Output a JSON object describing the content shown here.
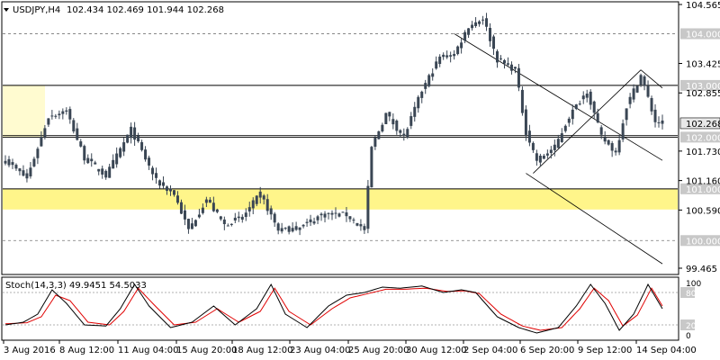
{
  "main_chart": {
    "symbol_label": "USDJPY,H4",
    "ohlc_label": "102.434 102.469 101.944 102.268",
    "current_price_label": "102.268"
  },
  "stoch": {
    "label": "Stoch(14,3,3) 49.9451 54.5033",
    "axis_labels": [
      "100",
      "80",
      "20",
      "0"
    ]
  },
  "colors": {
    "candle": "#3a4654",
    "support_zone": "#fff58a",
    "resist_zone": "#fffbd0",
    "level_line": "#000000",
    "stoch_main": "#000000",
    "stoch_signal": "#e00000",
    "level_label_bg": "#c8c8c8"
  },
  "chart_data": {
    "type": "candlestick",
    "price_axis_ticks": [
      "104.565",
      "103.425",
      "102.855",
      "101.730",
      "101.160",
      "100.590",
      "99.465"
    ],
    "ylim": [
      99.465,
      104.565
    ],
    "time_axis_labels": [
      "3 Aug 2016",
      "8 Aug 12:00",
      "11 Aug 04:00",
      "15 Aug 20:00",
      "18 Aug 12:00",
      "23 Aug 04:00",
      "25 Aug 20:00",
      "30 Aug 12:00",
      "2 Sep 04:00",
      "6 Sep 20:00",
      "9 Sep 12:00",
      "14 Sep 04:00"
    ],
    "horizontal_levels": [
      {
        "label": "104.000",
        "value": 104.0,
        "style": "dashed"
      },
      {
        "label": "103.000",
        "value": 103.0,
        "style": "solid"
      },
      {
        "label": "102.000",
        "value": 102.0,
        "style": "solid"
      },
      {
        "label": "101.000",
        "value": 101.0,
        "style": "solid"
      },
      {
        "label": "100.000",
        "value": 100.0,
        "style": "dashed"
      }
    ],
    "zones": [
      {
        "type": "support",
        "from": 100.6,
        "to": 101.0
      },
      {
        "type": "resistance",
        "from": 102.0,
        "to": 103.0
      }
    ],
    "anchors": [
      {
        "x": 0,
        "close": 101.55
      },
      {
        "x": 6,
        "close": 101.2
      },
      {
        "x": 12,
        "close": 102.4
      },
      {
        "x": 17,
        "close": 102.5
      },
      {
        "x": 22,
        "close": 101.6
      },
      {
        "x": 28,
        "close": 101.25
      },
      {
        "x": 35,
        "close": 102.15
      },
      {
        "x": 42,
        "close": 101.15
      },
      {
        "x": 47,
        "close": 100.9
      },
      {
        "x": 51,
        "close": 100.2
      },
      {
        "x": 56,
        "close": 100.8
      },
      {
        "x": 61,
        "close": 100.3
      },
      {
        "x": 66,
        "close": 100.45
      },
      {
        "x": 71,
        "close": 100.9
      },
      {
        "x": 76,
        "close": 100.2
      },
      {
        "x": 82,
        "close": 100.25
      },
      {
        "x": 88,
        "close": 100.5
      },
      {
        "x": 95,
        "close": 100.5
      },
      {
        "x": 100,
        "close": 100.2
      },
      {
        "x": 102,
        "close": 101.8
      },
      {
        "x": 106,
        "close": 102.45
      },
      {
        "x": 111,
        "close": 102.0
      },
      {
        "x": 116,
        "close": 102.9
      },
      {
        "x": 121,
        "close": 103.55
      },
      {
        "x": 125,
        "close": 103.6
      },
      {
        "x": 129,
        "close": 104.15
      },
      {
        "x": 133,
        "close": 104.3
      },
      {
        "x": 137,
        "close": 103.5
      },
      {
        "x": 142,
        "close": 103.3
      },
      {
        "x": 145,
        "close": 102.1
      },
      {
        "x": 148,
        "close": 101.55
      },
      {
        "x": 153,
        "close": 101.8
      },
      {
        "x": 157,
        "close": 102.4
      },
      {
        "x": 162,
        "close": 102.9
      },
      {
        "x": 166,
        "close": 102.0
      },
      {
        "x": 170,
        "close": 101.7
      },
      {
        "x": 173,
        "close": 102.6
      },
      {
        "x": 177,
        "close": 103.2
      },
      {
        "x": 181,
        "close": 102.3
      },
      {
        "x": 183,
        "close": 102.268
      }
    ],
    "stoch_main": [
      {
        "x": 0,
        "y": 20
      },
      {
        "x": 5,
        "y": 25
      },
      {
        "x": 9,
        "y": 40
      },
      {
        "x": 13,
        "y": 85
      },
      {
        "x": 17,
        "y": 60
      },
      {
        "x": 22,
        "y": 20
      },
      {
        "x": 28,
        "y": 18
      },
      {
        "x": 32,
        "y": 50
      },
      {
        "x": 36,
        "y": 95
      },
      {
        "x": 40,
        "y": 55
      },
      {
        "x": 46,
        "y": 15
      },
      {
        "x": 52,
        "y": 25
      },
      {
        "x": 58,
        "y": 55
      },
      {
        "x": 64,
        "y": 20
      },
      {
        "x": 70,
        "y": 50
      },
      {
        "x": 74,
        "y": 95
      },
      {
        "x": 78,
        "y": 40
      },
      {
        "x": 84,
        "y": 15
      },
      {
        "x": 90,
        "y": 55
      },
      {
        "x": 95,
        "y": 75
      },
      {
        "x": 100,
        "y": 80
      },
      {
        "x": 105,
        "y": 90
      },
      {
        "x": 110,
        "y": 88
      },
      {
        "x": 116,
        "y": 92
      },
      {
        "x": 122,
        "y": 80
      },
      {
        "x": 127,
        "y": 85
      },
      {
        "x": 131,
        "y": 80
      },
      {
        "x": 137,
        "y": 35
      },
      {
        "x": 143,
        "y": 15
      },
      {
        "x": 148,
        "y": 5
      },
      {
        "x": 154,
        "y": 15
      },
      {
        "x": 159,
        "y": 55
      },
      {
        "x": 163,
        "y": 95
      },
      {
        "x": 167,
        "y": 60
      },
      {
        "x": 171,
        "y": 10
      },
      {
        "x": 175,
        "y": 40
      },
      {
        "x": 179,
        "y": 95
      },
      {
        "x": 183,
        "y": 50
      }
    ],
    "stoch_signal": [
      {
        "x": 0,
        "y": 22
      },
      {
        "x": 6,
        "y": 24
      },
      {
        "x": 10,
        "y": 35
      },
      {
        "x": 14,
        "y": 75
      },
      {
        "x": 18,
        "y": 65
      },
      {
        "x": 23,
        "y": 25
      },
      {
        "x": 29,
        "y": 20
      },
      {
        "x": 33,
        "y": 45
      },
      {
        "x": 37,
        "y": 88
      },
      {
        "x": 41,
        "y": 60
      },
      {
        "x": 47,
        "y": 20
      },
      {
        "x": 53,
        "y": 25
      },
      {
        "x": 59,
        "y": 50
      },
      {
        "x": 65,
        "y": 25
      },
      {
        "x": 71,
        "y": 45
      },
      {
        "x": 75,
        "y": 88
      },
      {
        "x": 79,
        "y": 45
      },
      {
        "x": 85,
        "y": 20
      },
      {
        "x": 91,
        "y": 50
      },
      {
        "x": 96,
        "y": 70
      },
      {
        "x": 101,
        "y": 78
      },
      {
        "x": 106,
        "y": 86
      },
      {
        "x": 111,
        "y": 86
      },
      {
        "x": 117,
        "y": 88
      },
      {
        "x": 123,
        "y": 82
      },
      {
        "x": 128,
        "y": 83
      },
      {
        "x": 132,
        "y": 78
      },
      {
        "x": 138,
        "y": 40
      },
      {
        "x": 144,
        "y": 18
      },
      {
        "x": 149,
        "y": 10
      },
      {
        "x": 155,
        "y": 15
      },
      {
        "x": 160,
        "y": 50
      },
      {
        "x": 164,
        "y": 88
      },
      {
        "x": 168,
        "y": 65
      },
      {
        "x": 172,
        "y": 18
      },
      {
        "x": 176,
        "y": 38
      },
      {
        "x": 180,
        "y": 88
      },
      {
        "x": 183,
        "y": 55
      }
    ],
    "trendlines": [
      {
        "from": {
          "x": 125,
          "y": 104.0
        },
        "to": {
          "x": 183,
          "y": 101.55
        }
      },
      {
        "from": {
          "x": 145,
          "y": 101.3
        },
        "to": {
          "x": 183,
          "y": 99.55
        }
      },
      {
        "from": {
          "x": 147,
          "y": 101.3
        },
        "to": {
          "x": 177,
          "y": 103.3
        }
      },
      {
        "from": {
          "x": 177,
          "y": 103.3
        },
        "to": {
          "x": 183,
          "y": 102.95
        }
      }
    ]
  }
}
